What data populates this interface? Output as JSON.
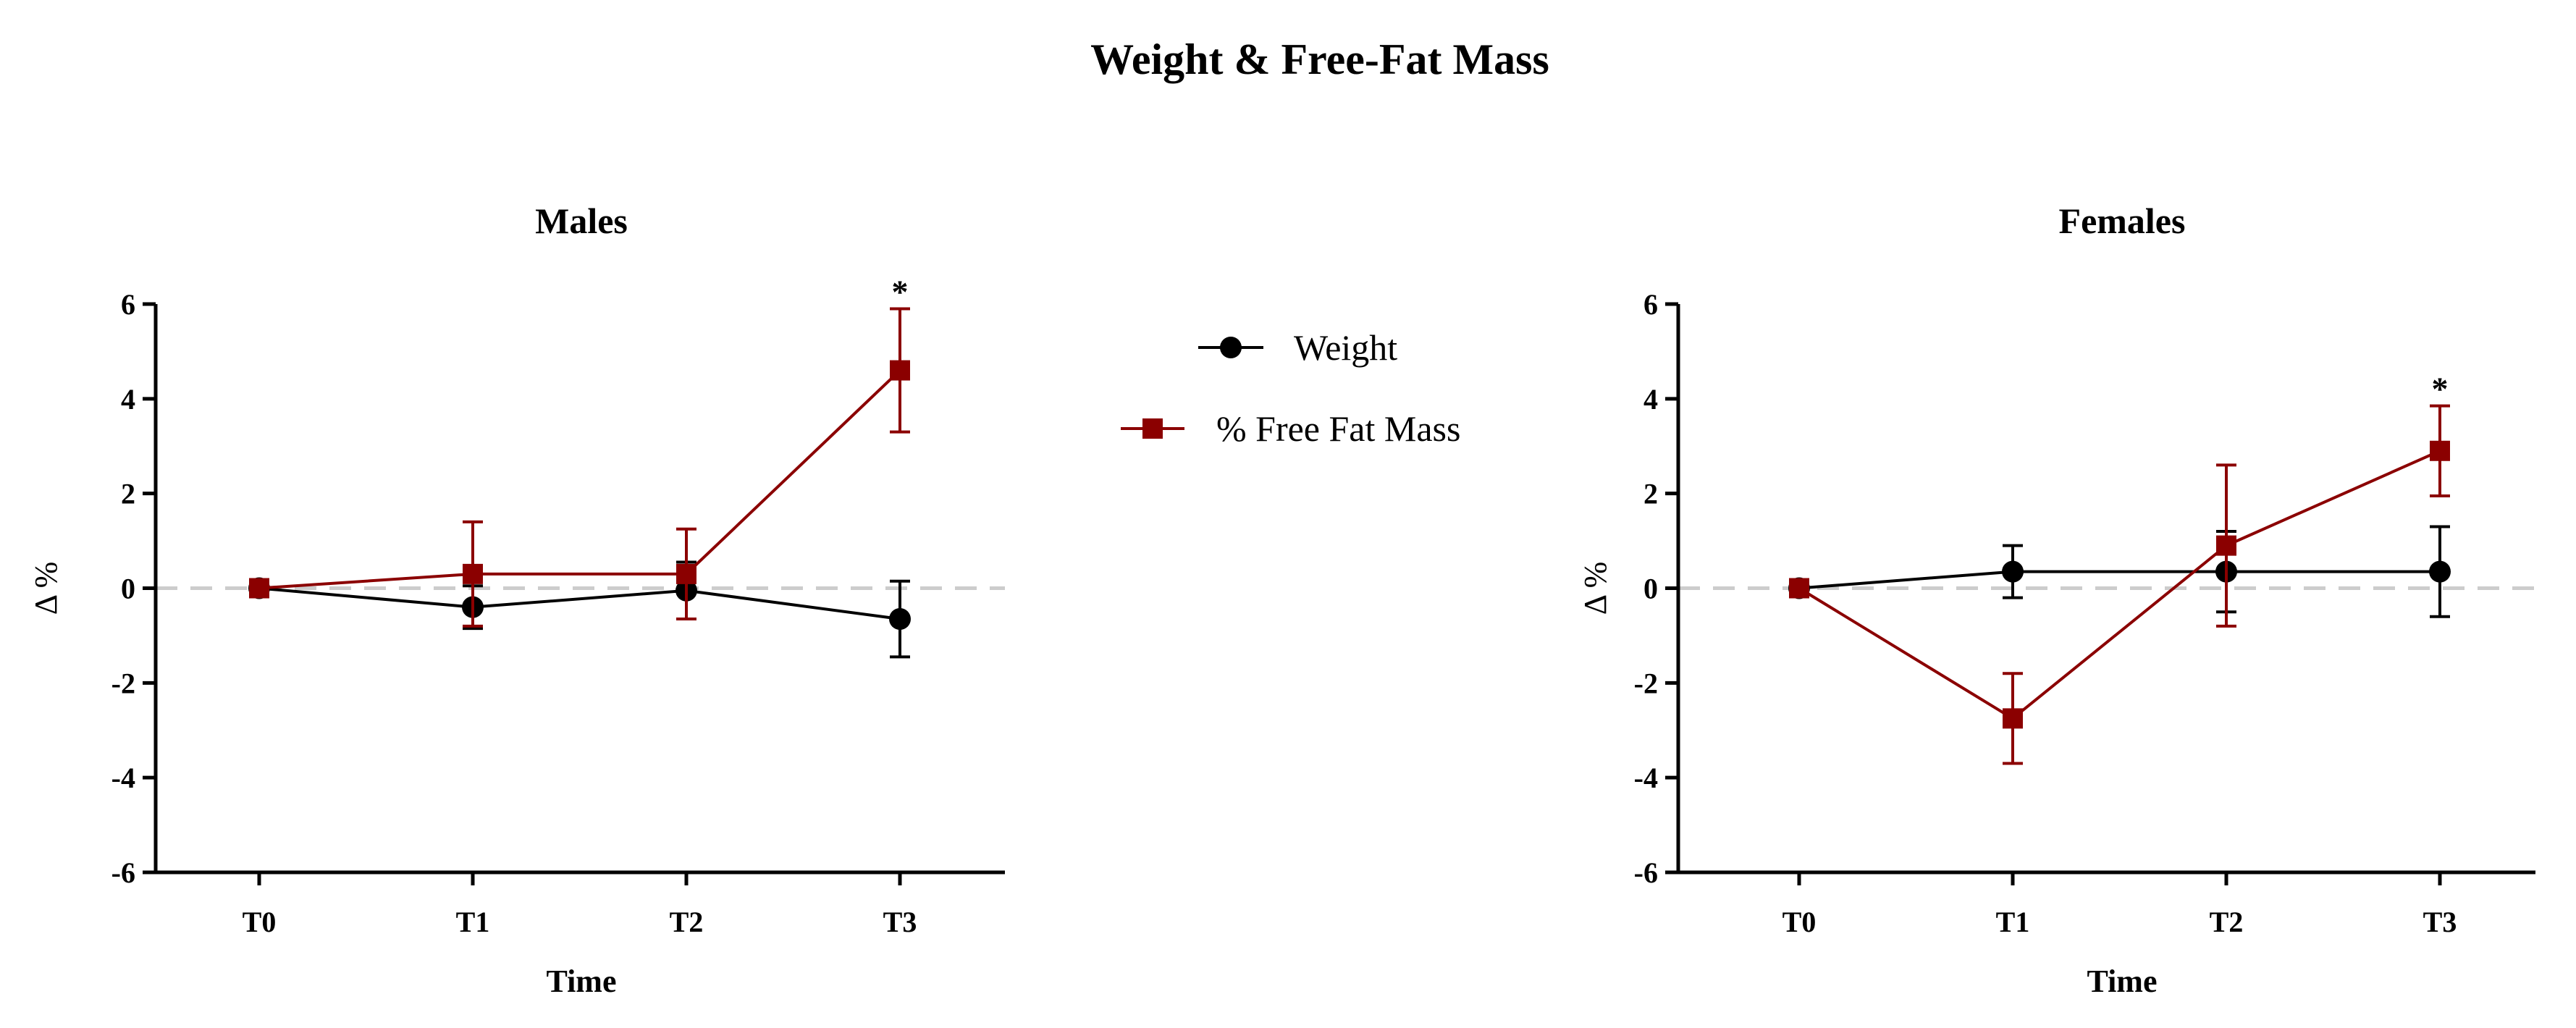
{
  "figure_title": "Weight & Free-Fat Mass",
  "colors": {
    "weight": "#000000",
    "ffm": "#8b0000",
    "zero_line": "#cccccc"
  },
  "legend": [
    {
      "label": "Weight",
      "color": "#000000",
      "marker": "circle"
    },
    {
      "label": "% Free Fat Mass",
      "color": "#8b0000",
      "marker": "square"
    }
  ],
  "chart_data": [
    {
      "type": "line",
      "title": "Males",
      "xlabel": "Time",
      "ylabel": "Δ %",
      "categories": [
        "T0",
        "T1",
        "T2",
        "T3"
      ],
      "ylim": [
        -6,
        6
      ],
      "yticks": [
        6,
        4,
        2,
        0,
        -2,
        -4,
        -6
      ],
      "yticklabels": [
        "6",
        "4",
        "2",
        "0",
        "-2",
        "-4",
        "-6"
      ],
      "reference_line": 0,
      "series": [
        {
          "name": "Weight",
          "values": [
            0,
            -0.4,
            -0.05,
            -0.65
          ],
          "err": [
            0,
            0.45,
            0.6,
            0.8
          ]
        },
        {
          "name": "% Free Fat Mass",
          "values": [
            0,
            0.3,
            0.3,
            4.6
          ],
          "err": [
            0,
            1.1,
            0.95,
            1.3
          ]
        }
      ],
      "annotations": [
        {
          "text": "*",
          "category": "T3",
          "value": 5.9
        }
      ]
    },
    {
      "type": "line",
      "title": "Females",
      "xlabel": "Time",
      "ylabel": "Δ %",
      "categories": [
        "T0",
        "T1",
        "T2",
        "T3"
      ],
      "ylim": [
        -6,
        6
      ],
      "yticks": [
        6,
        4,
        2,
        0,
        -2,
        -4,
        -6
      ],
      "yticklabels": [
        "6",
        "4",
        "2",
        "0",
        "-2",
        "-4",
        "-6"
      ],
      "reference_line": 0,
      "series": [
        {
          "name": "Weight",
          "values": [
            0,
            0.35,
            0.35,
            0.35
          ],
          "err": [
            0,
            0.55,
            0.85,
            0.95
          ]
        },
        {
          "name": "% Free Fat Mass",
          "values": [
            0,
            -2.75,
            0.9,
            2.9
          ],
          "err": [
            0,
            0.95,
            1.7,
            0.95
          ]
        }
      ],
      "annotations": [
        {
          "text": "*",
          "category": "T3",
          "value": 3.85
        }
      ]
    }
  ]
}
